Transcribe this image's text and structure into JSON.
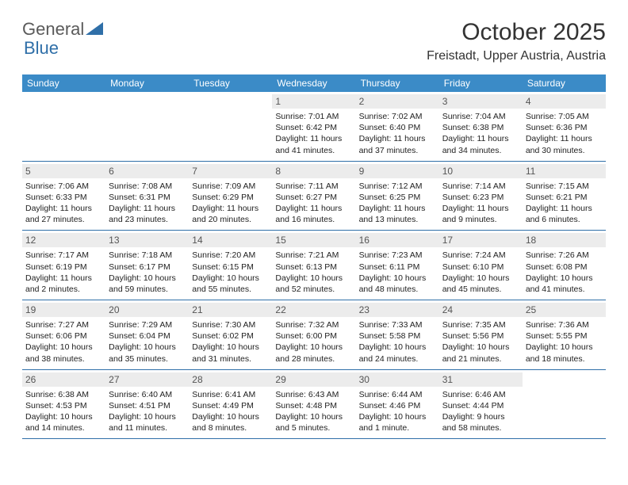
{
  "logo": {
    "part1": "General",
    "part2": "Blue"
  },
  "title": "October 2025",
  "location": "Freistadt, Upper Austria, Austria",
  "day_headers": [
    "Sunday",
    "Monday",
    "Tuesday",
    "Wednesday",
    "Thursday",
    "Friday",
    "Saturday"
  ],
  "style": {
    "header_bg": "#3b8bc7",
    "header_text": "#ffffff",
    "row_border": "#2f6fa8",
    "daynum_bg": "#ececec",
    "daynum_text": "#555555",
    "info_text": "#222222",
    "body_bg": "#ffffff",
    "title_fontsize": 30,
    "location_fontsize": 16,
    "dayhead_fontsize": 12,
    "daynum_fontsize": 12,
    "info_fontsize": 10.5
  },
  "weeks": [
    [
      {
        "n": "",
        "sr": "",
        "ss": "",
        "dl": ""
      },
      {
        "n": "",
        "sr": "",
        "ss": "",
        "dl": ""
      },
      {
        "n": "",
        "sr": "",
        "ss": "",
        "dl": ""
      },
      {
        "n": "1",
        "sr": "Sunrise: 7:01 AM",
        "ss": "Sunset: 6:42 PM",
        "dl": "Daylight: 11 hours and 41 minutes."
      },
      {
        "n": "2",
        "sr": "Sunrise: 7:02 AM",
        "ss": "Sunset: 6:40 PM",
        "dl": "Daylight: 11 hours and 37 minutes."
      },
      {
        "n": "3",
        "sr": "Sunrise: 7:04 AM",
        "ss": "Sunset: 6:38 PM",
        "dl": "Daylight: 11 hours and 34 minutes."
      },
      {
        "n": "4",
        "sr": "Sunrise: 7:05 AM",
        "ss": "Sunset: 6:36 PM",
        "dl": "Daylight: 11 hours and 30 minutes."
      }
    ],
    [
      {
        "n": "5",
        "sr": "Sunrise: 7:06 AM",
        "ss": "Sunset: 6:33 PM",
        "dl": "Daylight: 11 hours and 27 minutes."
      },
      {
        "n": "6",
        "sr": "Sunrise: 7:08 AM",
        "ss": "Sunset: 6:31 PM",
        "dl": "Daylight: 11 hours and 23 minutes."
      },
      {
        "n": "7",
        "sr": "Sunrise: 7:09 AM",
        "ss": "Sunset: 6:29 PM",
        "dl": "Daylight: 11 hours and 20 minutes."
      },
      {
        "n": "8",
        "sr": "Sunrise: 7:11 AM",
        "ss": "Sunset: 6:27 PM",
        "dl": "Daylight: 11 hours and 16 minutes."
      },
      {
        "n": "9",
        "sr": "Sunrise: 7:12 AM",
        "ss": "Sunset: 6:25 PM",
        "dl": "Daylight: 11 hours and 13 minutes."
      },
      {
        "n": "10",
        "sr": "Sunrise: 7:14 AM",
        "ss": "Sunset: 6:23 PM",
        "dl": "Daylight: 11 hours and 9 minutes."
      },
      {
        "n": "11",
        "sr": "Sunrise: 7:15 AM",
        "ss": "Sunset: 6:21 PM",
        "dl": "Daylight: 11 hours and 6 minutes."
      }
    ],
    [
      {
        "n": "12",
        "sr": "Sunrise: 7:17 AM",
        "ss": "Sunset: 6:19 PM",
        "dl": "Daylight: 11 hours and 2 minutes."
      },
      {
        "n": "13",
        "sr": "Sunrise: 7:18 AM",
        "ss": "Sunset: 6:17 PM",
        "dl": "Daylight: 10 hours and 59 minutes."
      },
      {
        "n": "14",
        "sr": "Sunrise: 7:20 AM",
        "ss": "Sunset: 6:15 PM",
        "dl": "Daylight: 10 hours and 55 minutes."
      },
      {
        "n": "15",
        "sr": "Sunrise: 7:21 AM",
        "ss": "Sunset: 6:13 PM",
        "dl": "Daylight: 10 hours and 52 minutes."
      },
      {
        "n": "16",
        "sr": "Sunrise: 7:23 AM",
        "ss": "Sunset: 6:11 PM",
        "dl": "Daylight: 10 hours and 48 minutes."
      },
      {
        "n": "17",
        "sr": "Sunrise: 7:24 AM",
        "ss": "Sunset: 6:10 PM",
        "dl": "Daylight: 10 hours and 45 minutes."
      },
      {
        "n": "18",
        "sr": "Sunrise: 7:26 AM",
        "ss": "Sunset: 6:08 PM",
        "dl": "Daylight: 10 hours and 41 minutes."
      }
    ],
    [
      {
        "n": "19",
        "sr": "Sunrise: 7:27 AM",
        "ss": "Sunset: 6:06 PM",
        "dl": "Daylight: 10 hours and 38 minutes."
      },
      {
        "n": "20",
        "sr": "Sunrise: 7:29 AM",
        "ss": "Sunset: 6:04 PM",
        "dl": "Daylight: 10 hours and 35 minutes."
      },
      {
        "n": "21",
        "sr": "Sunrise: 7:30 AM",
        "ss": "Sunset: 6:02 PM",
        "dl": "Daylight: 10 hours and 31 minutes."
      },
      {
        "n": "22",
        "sr": "Sunrise: 7:32 AM",
        "ss": "Sunset: 6:00 PM",
        "dl": "Daylight: 10 hours and 28 minutes."
      },
      {
        "n": "23",
        "sr": "Sunrise: 7:33 AM",
        "ss": "Sunset: 5:58 PM",
        "dl": "Daylight: 10 hours and 24 minutes."
      },
      {
        "n": "24",
        "sr": "Sunrise: 7:35 AM",
        "ss": "Sunset: 5:56 PM",
        "dl": "Daylight: 10 hours and 21 minutes."
      },
      {
        "n": "25",
        "sr": "Sunrise: 7:36 AM",
        "ss": "Sunset: 5:55 PM",
        "dl": "Daylight: 10 hours and 18 minutes."
      }
    ],
    [
      {
        "n": "26",
        "sr": "Sunrise: 6:38 AM",
        "ss": "Sunset: 4:53 PM",
        "dl": "Daylight: 10 hours and 14 minutes."
      },
      {
        "n": "27",
        "sr": "Sunrise: 6:40 AM",
        "ss": "Sunset: 4:51 PM",
        "dl": "Daylight: 10 hours and 11 minutes."
      },
      {
        "n": "28",
        "sr": "Sunrise: 6:41 AM",
        "ss": "Sunset: 4:49 PM",
        "dl": "Daylight: 10 hours and 8 minutes."
      },
      {
        "n": "29",
        "sr": "Sunrise: 6:43 AM",
        "ss": "Sunset: 4:48 PM",
        "dl": "Daylight: 10 hours and 5 minutes."
      },
      {
        "n": "30",
        "sr": "Sunrise: 6:44 AM",
        "ss": "Sunset: 4:46 PM",
        "dl": "Daylight: 10 hours and 1 minute."
      },
      {
        "n": "31",
        "sr": "Sunrise: 6:46 AM",
        "ss": "Sunset: 4:44 PM",
        "dl": "Daylight: 9 hours and 58 minutes."
      },
      {
        "n": "",
        "sr": "",
        "ss": "",
        "dl": ""
      }
    ]
  ]
}
